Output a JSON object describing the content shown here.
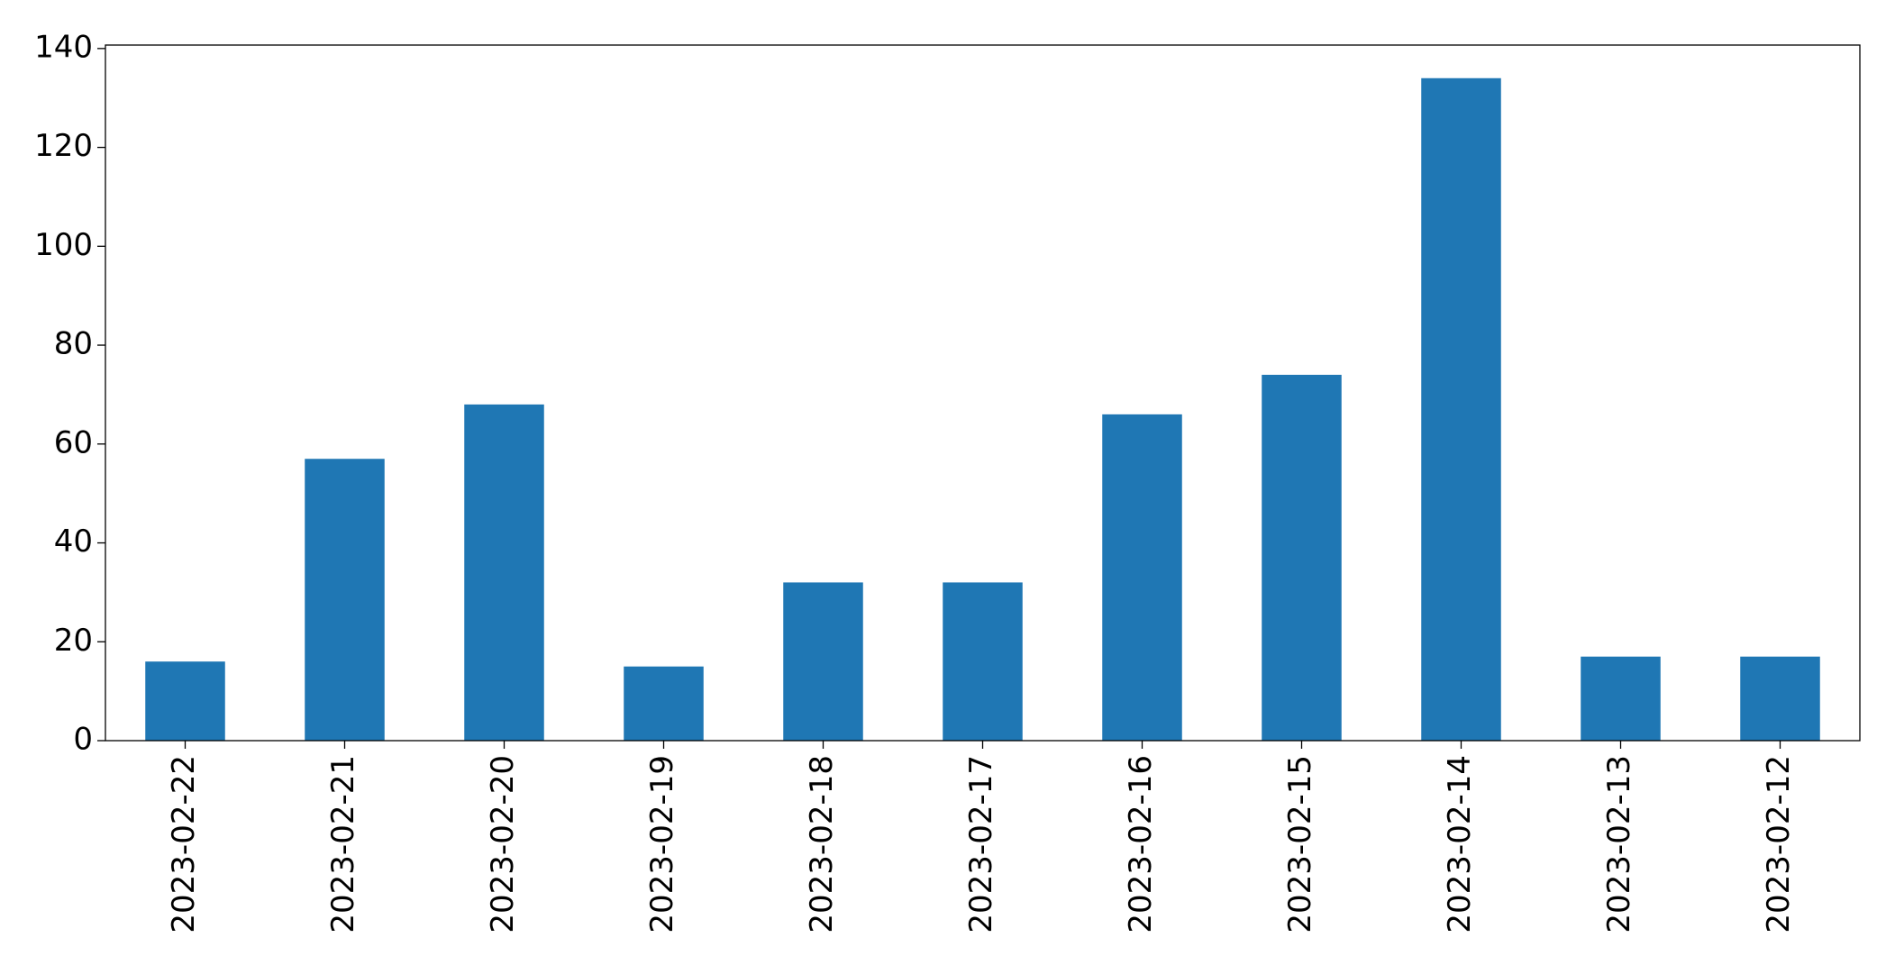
{
  "chart_data": {
    "type": "bar",
    "categories": [
      "2023-02-22",
      "2023-02-21",
      "2023-02-20",
      "2023-02-19",
      "2023-02-18",
      "2023-02-17",
      "2023-02-16",
      "2023-02-15",
      "2023-02-14",
      "2023-02-13",
      "2023-02-12"
    ],
    "values": [
      16,
      57,
      68,
      15,
      32,
      32,
      66,
      74,
      134,
      17,
      17
    ],
    "color": "#1f77b4",
    "ylim": [
      0,
      140.7
    ],
    "yticks": [
      0,
      20,
      40,
      60,
      80,
      100,
      120,
      140
    ],
    "grid": false
  }
}
